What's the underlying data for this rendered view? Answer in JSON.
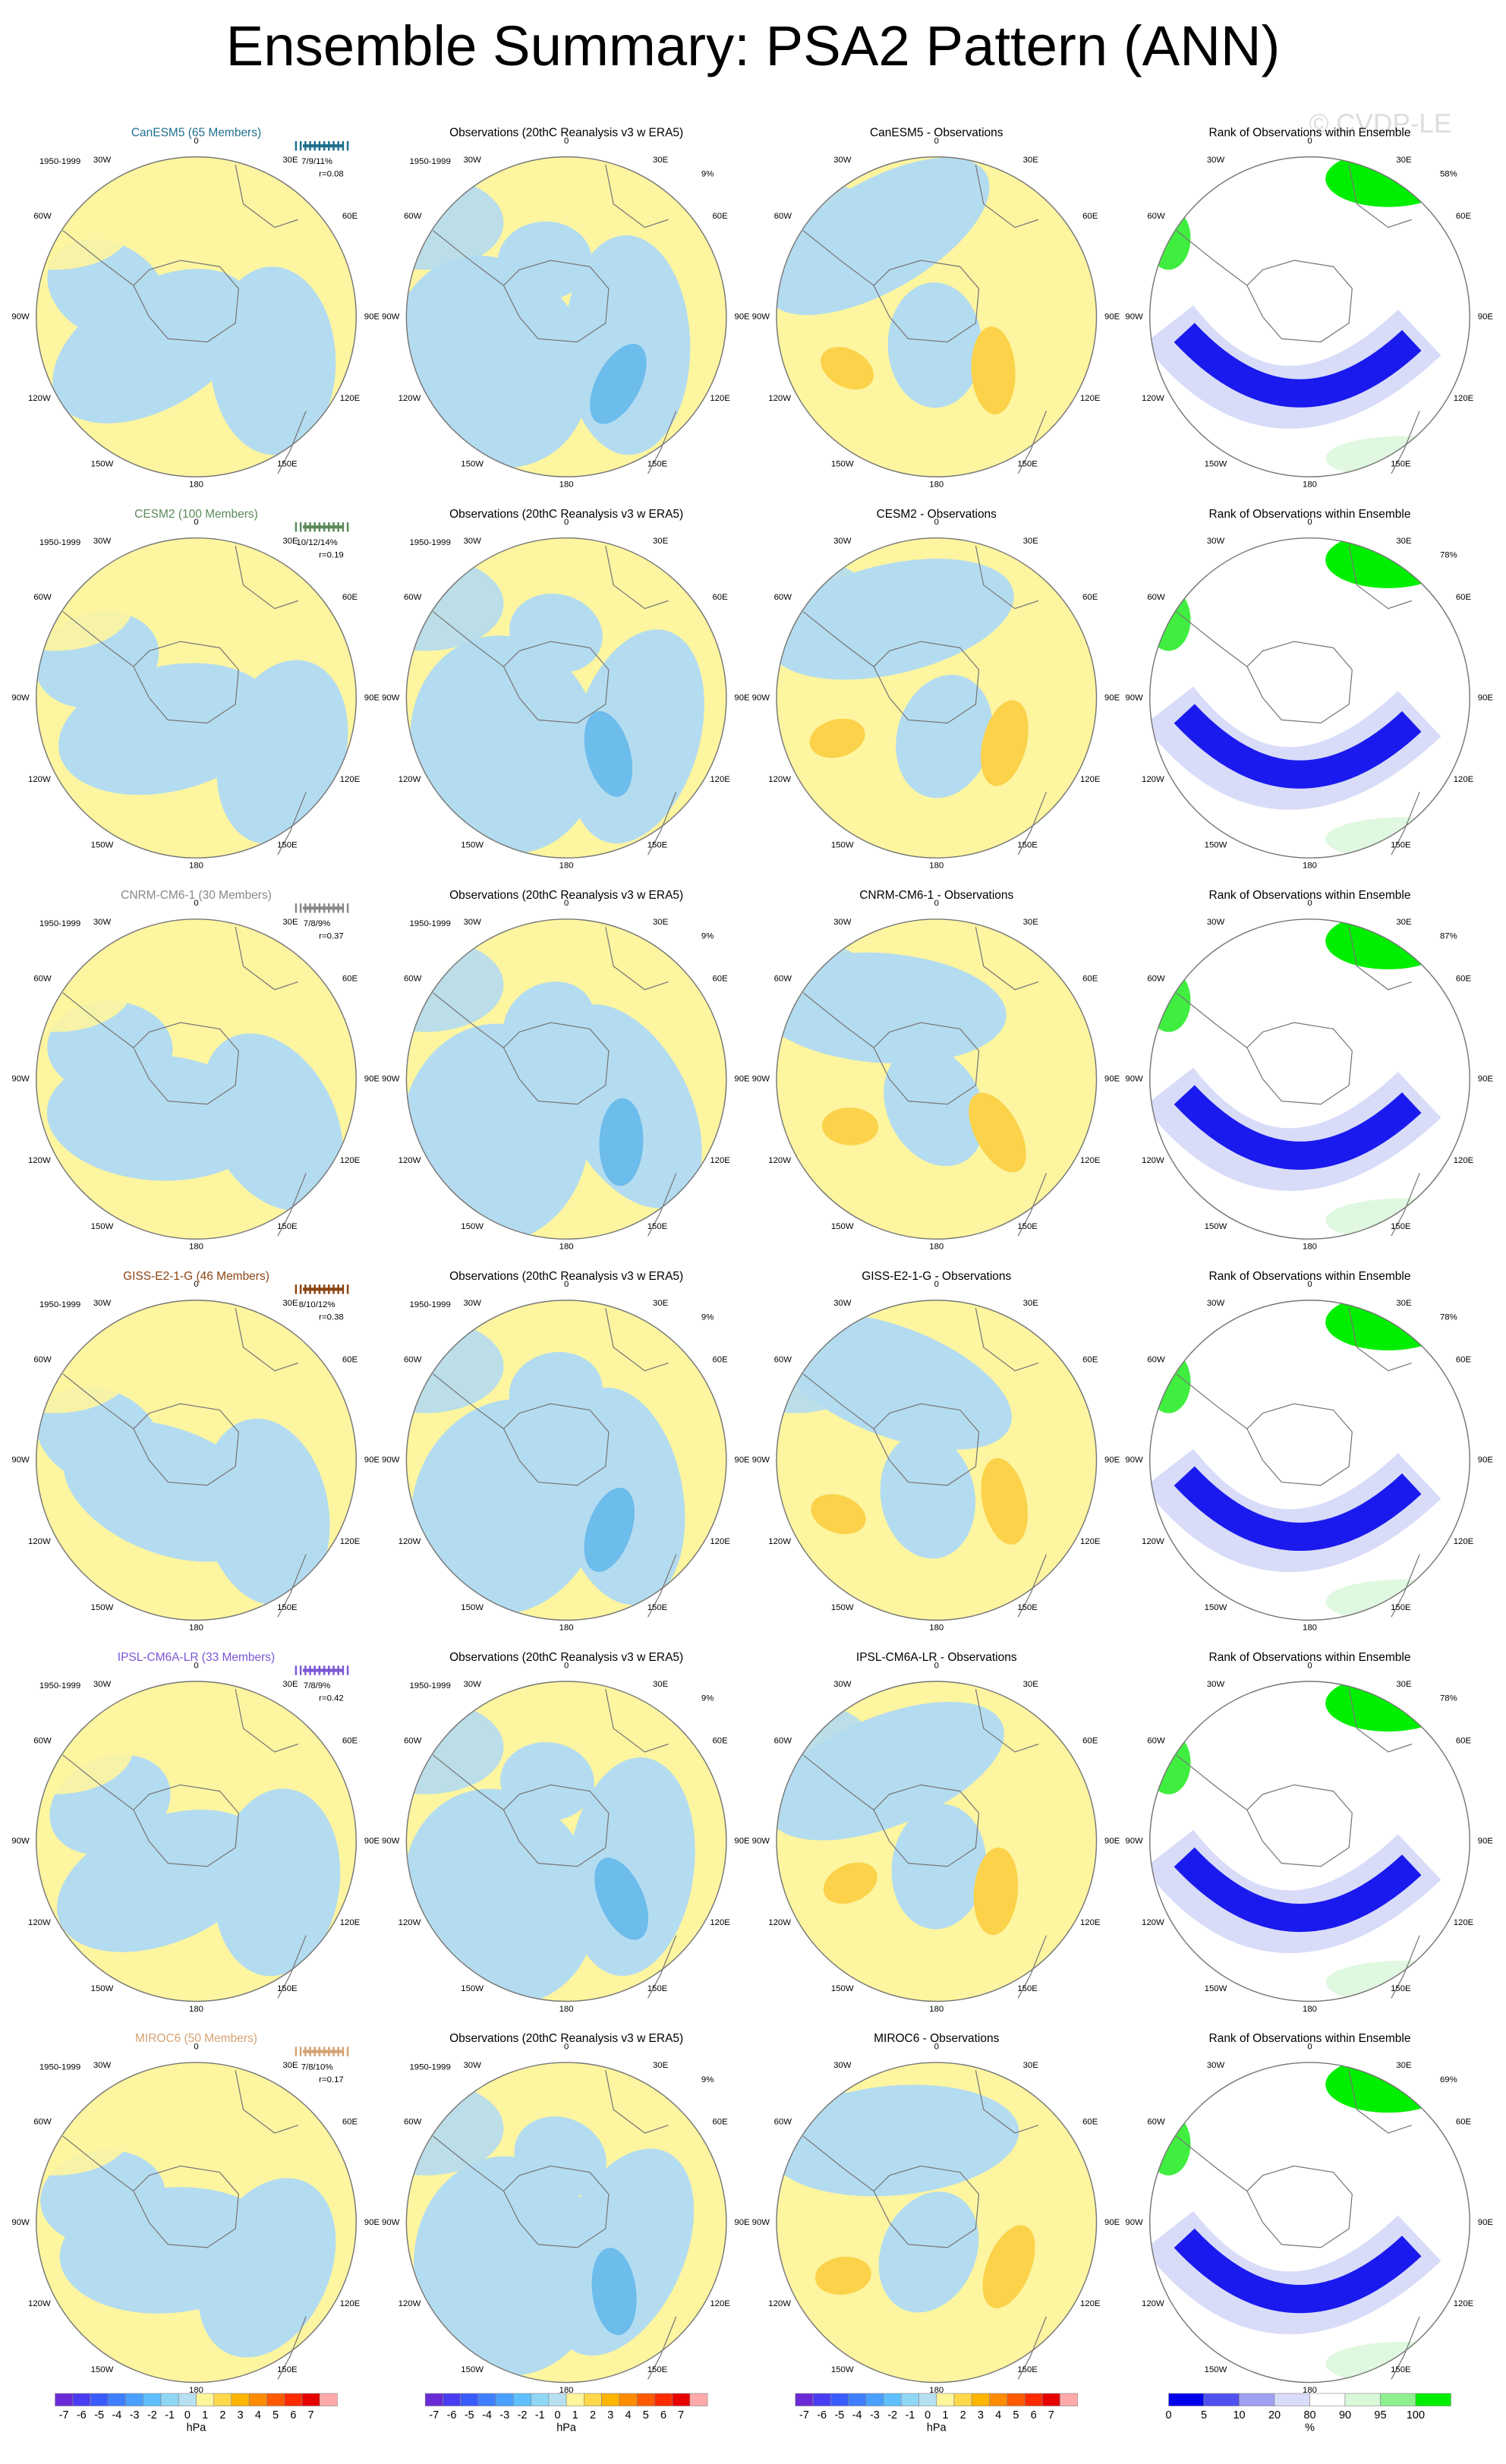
{
  "title": "Ensemble Summary: PSA2 Pattern (ANN)",
  "watermark": "© CVDP-LE",
  "period": "1950-1999",
  "longitude_labels": [
    "0",
    "30E",
    "60E",
    "90E",
    "120E",
    "150E",
    "180",
    "150W",
    "120W",
    "90W",
    "60W",
    "30W"
  ],
  "obs_title": "Observations (20thC Reanalysis v3 w ERA5)",
  "rank_title": "Rank of Observations within Ensemble",
  "rows": [
    {
      "model_title": "CanESM5 (65 Members)",
      "color": "#1f6f8f",
      "stats": "7/9/11%",
      "r": "r=0.08",
      "obs_pct": "9%",
      "diff_title": "CanESM5 - Observations",
      "rank_pct": "58%"
    },
    {
      "model_title": "CESM2 (100 Members)",
      "color": "#5a8a5a",
      "stats": "10/12/14%",
      "r": "r=0.19",
      "obs_pct": null,
      "diff_title": "CESM2 - Observations",
      "rank_pct": "78%"
    },
    {
      "model_title": "CNRM-CM6-1 (30 Members)",
      "color": "#888888",
      "stats": "7/8/9%",
      "r": "r=0.37",
      "obs_pct": "9%",
      "diff_title": "CNRM-CM6-1 - Observations",
      "rank_pct": "87%"
    },
    {
      "model_title": "GISS-E2-1-G (46 Members)",
      "color": "#8b4513",
      "stats": "8/10/12%",
      "r": "r=0.38",
      "obs_pct": "9%",
      "diff_title": "GISS-E2-1-G - Observations",
      "rank_pct": "78%"
    },
    {
      "model_title": "IPSL-CM6A-LR (33 Members)",
      "color": "#7b57d6",
      "stats": "7/8/9%",
      "r": "r=0.42",
      "obs_pct": "9%",
      "diff_title": "IPSL-CM6A-LR - Observations",
      "rank_pct": "78%"
    },
    {
      "model_title": "MIROC6 (50 Members)",
      "color": "#d4a373",
      "stats": "7/8/10%",
      "r": "r=0.17",
      "obs_pct": "9%",
      "diff_title": "MIROC6 - Observations",
      "rank_pct": "69%"
    }
  ],
  "colorbar": {
    "ticks": [
      -7,
      -6,
      -5,
      -4,
      -3,
      -2,
      -1,
      0,
      1,
      2,
      3,
      4,
      5,
      6,
      7
    ],
    "unit": "hPa",
    "colors": [
      "#6a2ad6",
      "#4a3cf0",
      "#3a5cff",
      "#3f7fff",
      "#4aa0ff",
      "#5ec0ff",
      "#8fd6f5",
      "#b6e0f2",
      "#fff59a",
      "#ffd84a",
      "#ffb400",
      "#ff8c00",
      "#ff5a00",
      "#ff2a00",
      "#e60000",
      "#ffaaaa"
    ]
  },
  "rank_colorbar": {
    "ticks": [
      0,
      5,
      10,
      20,
      80,
      90,
      95,
      100
    ],
    "unit": "%",
    "colors": [
      "#0000ee",
      "#5050ee",
      "#a0a0f0",
      "#d8dcf8",
      "#ffffff",
      "#d8f8d8",
      "#90f090",
      "#00ee00"
    ]
  }
}
